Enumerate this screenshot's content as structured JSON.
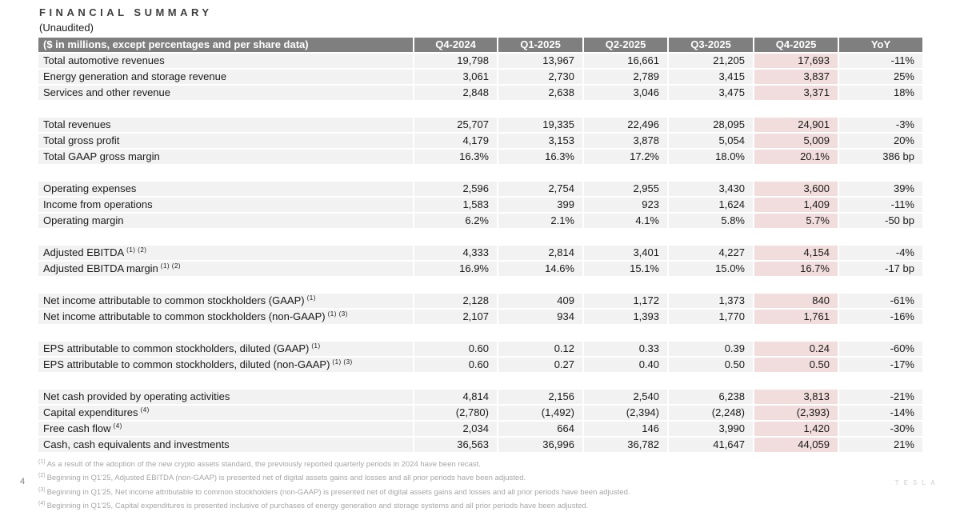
{
  "page": {
    "title": "FINANCIAL SUMMARY",
    "subtitle": "(Unaudited)",
    "page_number": "4",
    "brand_wordmark": "TESLA"
  },
  "table": {
    "corner_label": "($ in millions, except percentages and per share data)",
    "columns": [
      "Q4-2024",
      "Q1-2025",
      "Q2-2025",
      "Q3-2025",
      "Q4-2025",
      "YoY"
    ],
    "highlight_column": "Q4-2025",
    "sections": [
      {
        "rows": [
          {
            "label": "Total automotive revenues",
            "sup": "",
            "values": [
              "19,798",
              "13,967",
              "16,661",
              "21,205",
              "17,693",
              "-11%"
            ]
          },
          {
            "label": "Energy generation and storage revenue",
            "sup": "",
            "values": [
              "3,061",
              "2,730",
              "2,789",
              "3,415",
              "3,837",
              "25%"
            ]
          },
          {
            "label": "Services and other revenue",
            "sup": "",
            "values": [
              "2,848",
              "2,638",
              "3,046",
              "3,475",
              "3,371",
              "18%"
            ]
          }
        ]
      },
      {
        "rows": [
          {
            "label": "Total revenues",
            "sup": "",
            "values": [
              "25,707",
              "19,335",
              "22,496",
              "28,095",
              "24,901",
              "-3%"
            ]
          },
          {
            "label": "Total gross profit",
            "sup": "",
            "values": [
              "4,179",
              "3,153",
              "3,878",
              "5,054",
              "5,009",
              "20%"
            ]
          },
          {
            "label": "Total GAAP gross margin",
            "sup": "",
            "values": [
              "16.3%",
              "16.3%",
              "17.2%",
              "18.0%",
              "20.1%",
              "386 bp"
            ]
          }
        ]
      },
      {
        "rows": [
          {
            "label": "Operating expenses",
            "sup": "",
            "values": [
              "2,596",
              "2,754",
              "2,955",
              "3,430",
              "3,600",
              "39%"
            ]
          },
          {
            "label": "Income from operations",
            "sup": "",
            "values": [
              "1,583",
              "399",
              "923",
              "1,624",
              "1,409",
              "-11%"
            ]
          },
          {
            "label": "Operating margin",
            "sup": "",
            "values": [
              "6.2%",
              "2.1%",
              "4.1%",
              "5.8%",
              "5.7%",
              "-50 bp"
            ]
          }
        ]
      },
      {
        "rows": [
          {
            "label": "Adjusted EBITDA",
            "sup": "(1) (2)",
            "values": [
              "4,333",
              "2,814",
              "3,401",
              "4,227",
              "4,154",
              "-4%"
            ]
          },
          {
            "label": "Adjusted EBITDA margin",
            "sup": "(1) (2)",
            "values": [
              "16.9%",
              "14.6%",
              "15.1%",
              "15.0%",
              "16.7%",
              "-17 bp"
            ]
          }
        ]
      },
      {
        "rows": [
          {
            "label": "Net income attributable to common stockholders (GAAP)",
            "sup": "(1)",
            "values": [
              "2,128",
              "409",
              "1,172",
              "1,373",
              "840",
              "-61%"
            ]
          },
          {
            "label": "Net income attributable to common stockholders (non-GAAP)",
            "sup": "(1) (3)",
            "values": [
              "2,107",
              "934",
              "1,393",
              "1,770",
              "1,761",
              "-16%"
            ]
          }
        ]
      },
      {
        "rows": [
          {
            "label": "EPS attributable to common stockholders, diluted (GAAP)",
            "sup": "(1)",
            "values": [
              "0.60",
              "0.12",
              "0.33",
              "0.39",
              "0.24",
              "-60%"
            ]
          },
          {
            "label": "EPS attributable to common stockholders, diluted (non-GAAP)",
            "sup": "(1) (3)",
            "values": [
              "0.60",
              "0.27",
              "0.40",
              "0.50",
              "0.50",
              "-17%"
            ]
          }
        ]
      },
      {
        "rows": [
          {
            "label": "Net cash provided by operating activities",
            "sup": "",
            "values": [
              "4,814",
              "2,156",
              "2,540",
              "6,238",
              "3,813",
              "-21%"
            ]
          },
          {
            "label": "Capital expenditures",
            "sup": "(4)",
            "values": [
              "(2,780)",
              "(1,492)",
              "(2,394)",
              "(2,248)",
              "(2,393)",
              "-14%"
            ]
          },
          {
            "label": "Free cash flow",
            "sup": "(4)",
            "values": [
              "2,034",
              "664",
              "146",
              "3,990",
              "1,420",
              "-30%"
            ]
          },
          {
            "label": "Cash, cash equivalents and investments",
            "sup": "",
            "values": [
              "36,563",
              "36,996",
              "36,782",
              "41,647",
              "44,059",
              "21%"
            ]
          }
        ]
      }
    ]
  },
  "footnotes": [
    {
      "sup": "(1)",
      "text": "As a result of the adoption of the new crypto assets standard, the previously reported quarterly periods in 2024 have been recast."
    },
    {
      "sup": "(2)",
      "text": "Beginning in Q1'25, Adjusted EBITDA (non-GAAP) is presented net of digital assets gains and losses and all prior periods have been adjusted."
    },
    {
      "sup": "(3)",
      "text": "Beginning in Q1'25, Net income attributable to common stockholders (non-GAAP) is presented net of digital assets gains and losses and all prior periods have been adjusted."
    },
    {
      "sup": "(4)",
      "text": "Beginning in Q1'25, Capital expenditures is presented inclusive of purchases of energy generation and storage systems and all prior periods have been adjusted."
    }
  ],
  "colors": {
    "header_bg": "#7f7f7f",
    "header_text": "#ffffff",
    "row_bg": "#f2f2f2",
    "highlight_bg": "#f1dddb",
    "footnote_text": "#a6a6a6",
    "brand_text": "#dcdcdc"
  }
}
